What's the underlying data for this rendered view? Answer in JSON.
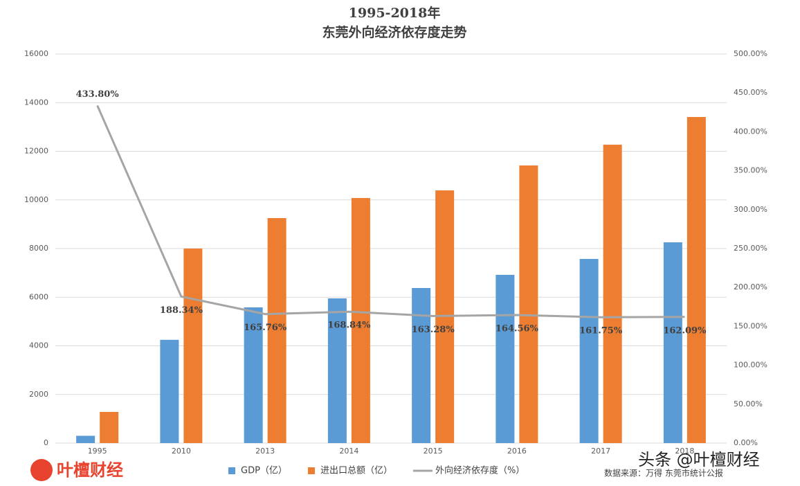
{
  "chart_data": {
    "type": "bar-line",
    "title": "1995-2018年",
    "subtitle": "东莞外向经济依存度走势",
    "categories": [
      "1995",
      "2010",
      "2013",
      "2014",
      "2015",
      "2016",
      "2017",
      "2018"
    ],
    "series": [
      {
        "name": "GDP（亿）",
        "color": "#5b9bd5",
        "type": "bar",
        "values": [
          300,
          4246,
          5580,
          5950,
          6377,
          6918,
          7573,
          8256
        ]
      },
      {
        "name": "进出口总额（亿）",
        "color": "#ed7d31",
        "type": "bar",
        "values": [
          1281,
          8000,
          9253,
          10078,
          10391,
          11416,
          12270,
          13409
        ]
      },
      {
        "name": "外向经济依存度（%）",
        "color": "#a5a5a5",
        "type": "line",
        "axis": "y2",
        "values": [
          433.8,
          188.34,
          165.76,
          168.84,
          163.28,
          164.56,
          161.75,
          162.09
        ],
        "value_labels": [
          "433.80%",
          "188.34%",
          "165.76%",
          "168.84%",
          "163.28%",
          "164.56%",
          "161.75%",
          "162.09%"
        ]
      }
    ],
    "ylim": [
      0,
      16000
    ],
    "yticks": [
      0,
      2000,
      4000,
      6000,
      8000,
      10000,
      12000,
      14000,
      16000
    ],
    "y2lim": [
      0,
      500
    ],
    "y2ticks": [
      {
        "value": 0,
        "label": "0.00%"
      },
      {
        "value": 50,
        "label": "50.00%"
      },
      {
        "value": 100,
        "label": "100.00%"
      },
      {
        "value": 150,
        "label": "150.00%"
      },
      {
        "value": 200,
        "label": "200.00%"
      },
      {
        "value": 250,
        "label": "250.00%"
      },
      {
        "value": 300,
        "label": "300.00%"
      },
      {
        "value": 350,
        "label": "350.00%"
      },
      {
        "value": 400,
        "label": "400.00%"
      },
      {
        "value": 450,
        "label": "450.00%"
      },
      {
        "value": 500,
        "label": "500.00%"
      }
    ],
    "grid": true,
    "legend": "bottom",
    "source": "数据来源：万得 东莞市统计公报"
  },
  "branding": {
    "logo": "叶檀财经",
    "watermark": "头条 @叶檀财经"
  }
}
